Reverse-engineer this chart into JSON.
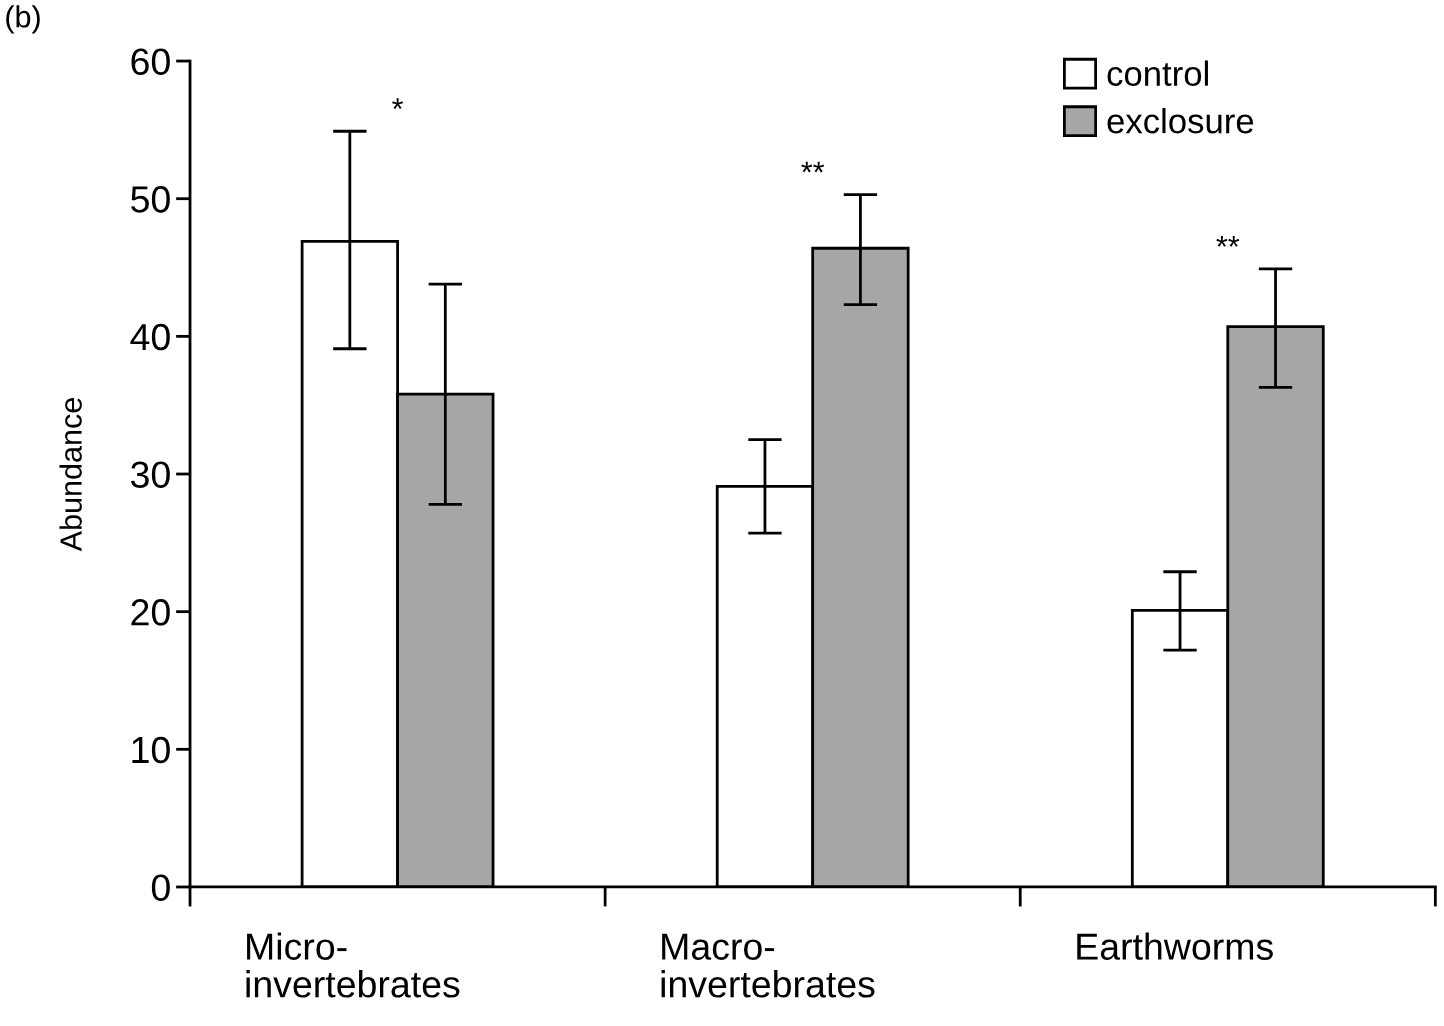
{
  "chart_data": {
    "type": "bar",
    "ylabel": "Abundance",
    "categories": [
      "Micro-\ninvertebrates",
      "Macro-\ninvertebrates",
      "Earthworms"
    ],
    "series": [
      {
        "name": "control",
        "color": "#ffffff",
        "values": [
          46.9,
          29.1,
          20.1
        ],
        "errors": [
          [
            39.1,
            54.9
          ],
          [
            25.7,
            32.5
          ],
          [
            17.2,
            22.9
          ]
        ]
      },
      {
        "name": "exclosure",
        "color": "#a6a6a6",
        "values": [
          35.8,
          46.4,
          40.7
        ],
        "errors": [
          [
            27.8,
            43.8
          ],
          [
            42.3,
            50.3
          ],
          [
            36.3,
            44.9
          ]
        ]
      }
    ],
    "ylim": [
      0,
      60
    ],
    "yticks": [
      0,
      10,
      20,
      30,
      40,
      50,
      60
    ],
    "grid": false,
    "legend": "top right",
    "annotations": [
      "(b)",
      "*",
      "**",
      "**"
    ]
  }
}
